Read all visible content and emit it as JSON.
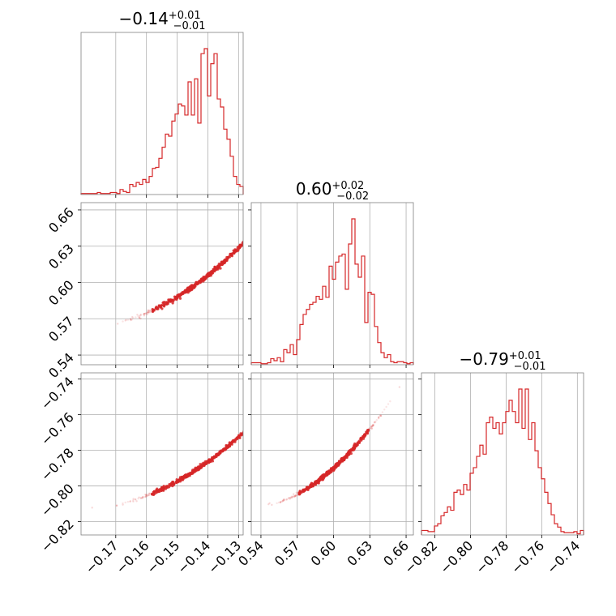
{
  "chart_data": {
    "type": "corner",
    "color": "#d62728",
    "parameters": [
      {
        "median": "−0.14",
        "upper": "+0.01",
        "lower": "−0.01",
        "range": [
          -0.1813,
          -0.1285
        ],
        "ticks": [
          -0.17,
          -0.16,
          -0.15,
          -0.14,
          -0.13
        ],
        "tick_labels": [
          "−0.17",
          "−0.16",
          "−0.15",
          "−0.14",
          "−0.13"
        ],
        "hist_counts": [
          1,
          1,
          1,
          1,
          1,
          2,
          1,
          1,
          1,
          2,
          2,
          1,
          5,
          3,
          2,
          10,
          8,
          12,
          10,
          15,
          12,
          18,
          26,
          27,
          36,
          47,
          60,
          58,
          73,
          80,
          90,
          88,
          79,
          112,
          79,
          115,
          71,
          140,
          145,
          98,
          130,
          140,
          95,
          87,
          65,
          55,
          38,
          18,
          10,
          8
        ]
      },
      {
        "median": "0.60",
        "upper": "+0.02",
        "lower": "−0.02",
        "range": [
          0.532,
          0.666
        ],
        "ticks": [
          0.54,
          0.57,
          0.6,
          0.63,
          0.66
        ],
        "tick_labels": [
          "0.54",
          "0.57",
          "0.60",
          "0.63",
          "0.66"
        ],
        "hist_counts": [
          2,
          2,
          2,
          1,
          1,
          2,
          6,
          4,
          7,
          3,
          15,
          12,
          20,
          10,
          25,
          40,
          50,
          55,
          60,
          62,
          68,
          65,
          78,
          67,
          98,
          85,
          102,
          108,
          110,
          75,
          120,
          145,
          100,
          87,
          108,
          42,
          72,
          70,
          38,
          22,
          12,
          7,
          10,
          3,
          2,
          3,
          3,
          2,
          1,
          2
        ]
      },
      {
        "median": "−0.79",
        "upper": "+0.01",
        "lower": "−0.01",
        "range": [
          -0.8275,
          -0.7365
        ],
        "ticks": [
          -0.82,
          -0.8,
          -0.78,
          -0.76,
          -0.74
        ],
        "tick_labels": [
          "−0.82",
          "−0.80",
          "−0.78",
          "−0.76",
          "−0.74"
        ],
        "hist_counts": [
          4,
          4,
          3,
          3,
          8,
          10,
          17,
          20,
          25,
          22,
          38,
          40,
          36,
          45,
          40,
          55,
          60,
          70,
          80,
          72,
          100,
          105,
          95,
          100,
          90,
          100,
          110,
          120,
          110,
          100,
          130,
          95,
          130,
          85,
          100,
          75,
          60,
          50,
          38,
          28,
          18,
          10,
          7,
          3,
          2,
          2,
          2,
          3,
          1,
          4
        ]
      }
    ],
    "correlations": {
      "p1_vs_p0_slope": 1.3,
      "p2_vs_p0_slope": 1.5
    }
  }
}
